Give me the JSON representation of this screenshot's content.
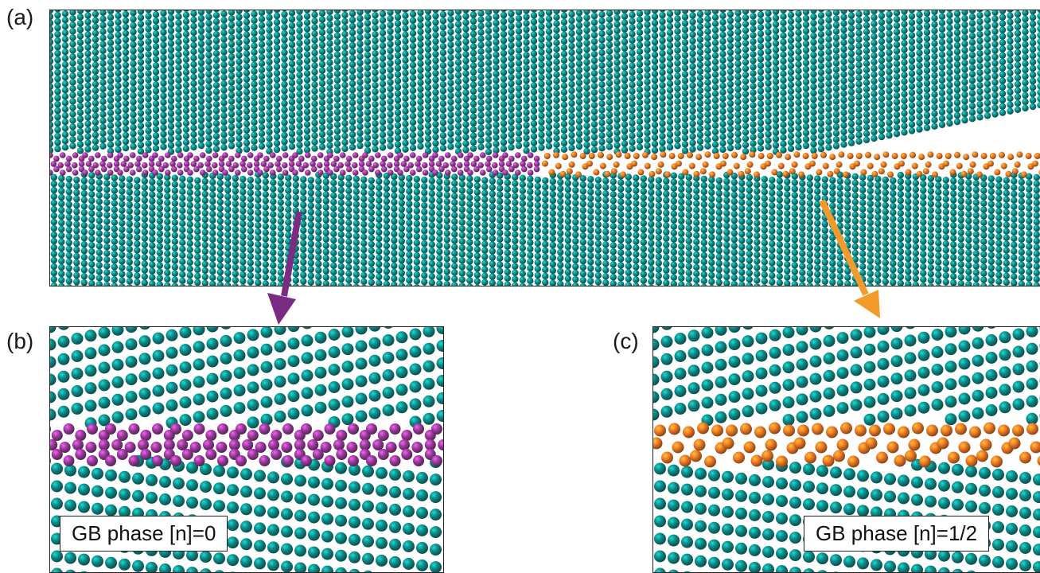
{
  "panels": [
    {
      "label": "(a)"
    },
    {
      "label": "(b)",
      "caption": "GB phase [n]=0"
    },
    {
      "label": "(c)",
      "caption": "GB phase [n]=1/2"
    }
  ],
  "colors": {
    "bulk_atom": "#0f8a87",
    "gb_phase_0": "#9b3c9c",
    "gb_phase_half": "#f07a25",
    "arrow_b": "#7a2b82",
    "arrow_c": "#f39a2b"
  }
}
